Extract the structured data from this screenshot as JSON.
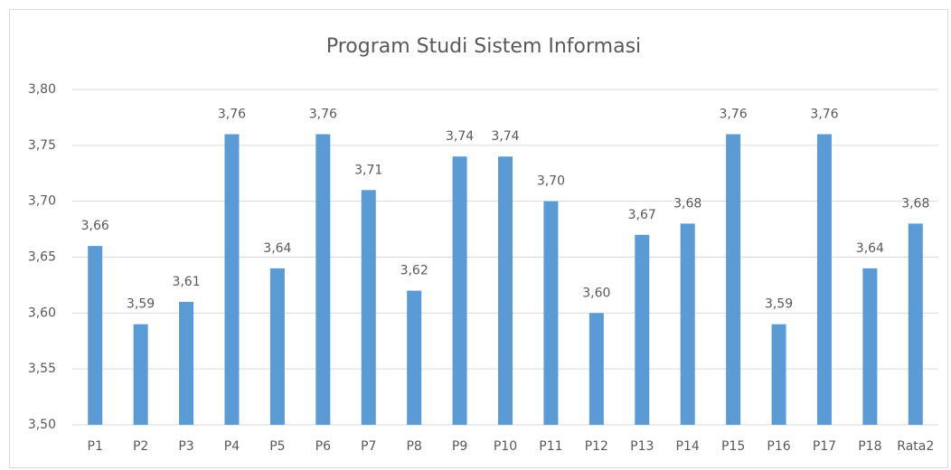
{
  "chart_data": {
    "type": "bar",
    "title": "Program Studi Sistem Informasi",
    "categories": [
      "P1",
      "P2",
      "P3",
      "P4",
      "P5",
      "P6",
      "P7",
      "P8",
      "P9",
      "P10",
      "P11",
      "P12",
      "P13",
      "P14",
      "P15",
      "P16",
      "P17",
      "P18",
      "Rata2"
    ],
    "values": [
      3.66,
      3.59,
      3.61,
      3.76,
      3.64,
      3.76,
      3.71,
      3.62,
      3.74,
      3.74,
      3.7,
      3.6,
      3.67,
      3.68,
      3.76,
      3.59,
      3.76,
      3.64,
      3.68
    ],
    "value_labels": [
      "3,66",
      "3,59",
      "3,61",
      "3,76",
      "3,64",
      "3,76",
      "3,71",
      "3,62",
      "3,74",
      "3,74",
      "3,70",
      "3,60",
      "3,67",
      "3,68",
      "3,76",
      "3,59",
      "3,76",
      "3,64",
      "3,68"
    ],
    "color": "#5b9bd5",
    "ylim": [
      3.5,
      3.8
    ],
    "yticks": [
      {
        "value": 3.5,
        "label": "3,50"
      },
      {
        "value": 3.55,
        "label": "3,55"
      },
      {
        "value": 3.6,
        "label": "3,60"
      },
      {
        "value": 3.65,
        "label": "3,65"
      },
      {
        "value": 3.7,
        "label": "3,70"
      },
      {
        "value": 3.75,
        "label": "3,75"
      },
      {
        "value": 3.8,
        "label": "3,80"
      }
    ],
    "grid": true
  }
}
